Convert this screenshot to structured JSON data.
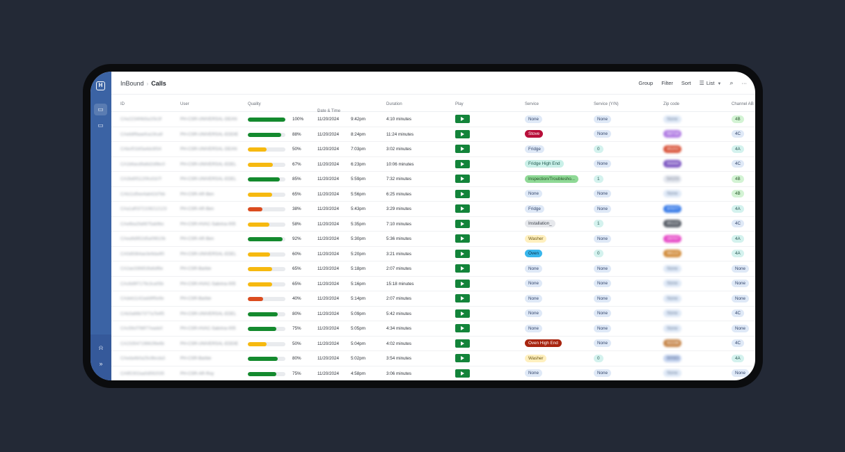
{
  "breadcrumb": {
    "root": "InBound",
    "current": "Calls"
  },
  "toolbar": {
    "group": "Group",
    "filter": "Filter",
    "sort": "Sort",
    "view": "List"
  },
  "columns": [
    "ID",
    "User",
    "Quality",
    "Date & Time",
    "Duration",
    "Play",
    "Service",
    "Service (Y/N)",
    "Zip code",
    "Channel AB"
  ],
  "date_sort_indicator": "↓",
  "colors": {
    "sidebar": "#3b63a4",
    "play": "#13843a",
    "good": "#148a2e",
    "mid": "#f6b910",
    "bad": "#db4c1f"
  },
  "rows": [
    {
      "id": "CAe2234f4b5a1f3c3f",
      "user": "PH-CSR-UNIVERSAL-DEAN",
      "quality": 100,
      "pct": "100%",
      "date": "11/20/2024",
      "time": "9:42pm",
      "duration": "4:10 minutes",
      "service": "None",
      "service_style": "none",
      "yn": "None",
      "yn_style": "none",
      "zip": "None",
      "zip_bg": "#dfe9f7",
      "zip_fg": "#6b7e99",
      "channel": "4B",
      "ch_bg": "#d3f3d4",
      "ch_fg": "#2c5e2e"
    },
    {
      "id": "CAeb8f9aaefca19ca9",
      "user": "PH-CSR-UNIVERSAL-EDDIE",
      "quality": 88,
      "pct": "88%",
      "date": "11/20/2024",
      "time": "8:24pm",
      "duration": "11:24 minutes",
      "service": "Stove",
      "service_style": "stove",
      "yn": "None",
      "yn_style": "none",
      "zip": "58718",
      "zip_bg": "#b07be3",
      "zip_fg": "#ffffff",
      "channel": "4C",
      "ch_bg": "#dfe9f7",
      "ch_fg": "#33456b"
    },
    {
      "id": "CAbcf01bf3a4dc6f34",
      "user": "PH-CSR-UNIVERSAL-DEAN",
      "quality": 50,
      "pct": "50%",
      "date": "11/20/2024",
      "time": "7:03pm",
      "duration": "3:02 minutes",
      "service": "Fridge",
      "service_style": "light",
      "yn": "0",
      "yn_style": "num",
      "zip": "85202",
      "zip_bg": "#d9533a",
      "zip_fg": "#ffffff",
      "channel": "4A",
      "ch_bg": "#d4f2ee",
      "ch_fg": "#2c5a55"
    },
    {
      "id": "CA1b6acd9a6d2d9bc0",
      "user": "PH-CSR-UNIVERSAL-EDEL",
      "quality": 67,
      "pct": "67%",
      "date": "11/20/2024",
      "time": "6:23pm",
      "duration": "10:06 minutes",
      "service": "Fridge High End",
      "service_style": "teal",
      "yn": "None",
      "yn_style": "none",
      "zip": "94444",
      "zip_bg": "#7d57c2",
      "zip_fg": "#ffffff",
      "channel": "4C",
      "ch_bg": "#dfe9f7",
      "ch_fg": "#33456b"
    },
    {
      "id": "CA2bd0f1120fcd1b7f",
      "user": "PH-CSR-UNIVERSAL-EDEL",
      "quality": 85,
      "pct": "85%",
      "date": "11/20/2024",
      "time": "5:59pm",
      "duration": "7:32 minutes",
      "service": "Inspection/Troublesho...",
      "service_style": "green",
      "yn": "1",
      "yn_style": "num",
      "zip": "54103",
      "zip_bg": "#e2e6ee",
      "zip_fg": "#7b8191",
      "channel": "4B",
      "ch_bg": "#d3f3d4",
      "ch_fg": "#2c5e2e"
    },
    {
      "id": "CAb11d5ee4ab42d7bb",
      "user": "PH-CSR-AR-Ben",
      "quality": 65,
      "pct": "65%",
      "date": "11/20/2024",
      "time": "5:56pm",
      "duration": "6:25 minutes",
      "service": "None",
      "service_style": "none",
      "yn": "None",
      "yn_style": "none",
      "zip": "None",
      "zip_bg": "#dfe9f7",
      "zip_fg": "#6b7e99",
      "channel": "4B",
      "ch_bg": "#d3f3d4",
      "ch_fg": "#2c5e2e"
    },
    {
      "id": "CAa1af0372108212123",
      "user": "PH-CSR-AR-Ben",
      "quality": 38,
      "pct": "38%",
      "date": "11/20/2024",
      "time": "5:43pm",
      "duration": "3:29 minutes",
      "service": "Fridge",
      "service_style": "light",
      "yn": "None",
      "yn_style": "none",
      "zip": "97077",
      "zip_bg": "#3b7de8",
      "zip_fg": "#ffffff",
      "channel": "4A",
      "ch_bg": "#d4f2ee",
      "ch_fg": "#2c5a55"
    },
    {
      "id": "CAe6ba2fa6675ab9bc",
      "user": "PH-CSR-HVAC-Sabrina-005",
      "quality": 58,
      "pct": "58%",
      "date": "11/20/2024",
      "time": "5:35pm",
      "duration": "7:10 minutes",
      "service": "Installation_",
      "service_style": "grey",
      "yn": "1",
      "yn_style": "num",
      "zip": "85122",
      "zip_bg": "#565c66",
      "zip_fg": "#ffffff",
      "channel": "4C",
      "ch_bg": "#dfe9f7",
      "ch_fg": "#33456b"
    },
    {
      "id": "CAea9d952d5a09610b",
      "user": "PH-CSR-AR-Ben",
      "quality": 92,
      "pct": "92%",
      "date": "11/20/2024",
      "time": "5:30pm",
      "duration": "5:36 minutes",
      "service": "Washer",
      "service_style": "yellow",
      "yn": "None",
      "yn_style": "none",
      "zip": "29707",
      "zip_bg": "#e64bc7",
      "zip_fg": "#ffffff",
      "channel": "4A",
      "ch_bg": "#d4f2ee",
      "ch_fg": "#2c5a55"
    },
    {
      "id": "CA0d9364ae3e9da4f0",
      "user": "PH-CSR-UNIVERSAL-EDEL",
      "quality": 60,
      "pct": "60%",
      "date": "11/20/2024",
      "time": "5:20pm",
      "duration": "3:21 minutes",
      "service": "Oven",
      "service_style": "blue",
      "yn": "0",
      "yn_style": "num",
      "zip": "98122",
      "zip_bg": "#d18b3a",
      "zip_fg": "#ffffff",
      "channel": "4A",
      "ch_bg": "#d4f2ee",
      "ch_fg": "#2c5a55"
    },
    {
      "id": "CA2ae336653fa6df6e",
      "user": "PH-CSR-Barbie",
      "quality": 65,
      "pct": "65%",
      "date": "11/20/2024",
      "time": "5:18pm",
      "duration": "2:07 minutes",
      "service": "None",
      "service_style": "none",
      "yn": "None",
      "yn_style": "none",
      "zip": "None",
      "zip_bg": "#dfe9f7",
      "zip_fg": "#6b7e99",
      "channel": "None",
      "ch_bg": "#dfe9f7",
      "ch_fg": "#33456b"
    },
    {
      "id": "CAc6d9f7179c3ca05b",
      "user": "PH-CSR-HVAC-Sabrina-005",
      "quality": 65,
      "pct": "65%",
      "date": "11/20/2024",
      "time": "5:16pm",
      "duration": "15:18 minutes",
      "service": "None",
      "service_style": "none",
      "yn": "None",
      "yn_style": "none",
      "zip": "None",
      "zip_bg": "#dfe9f7",
      "zip_fg": "#6b7e99",
      "channel": "None",
      "ch_bg": "#dfe9f7",
      "ch_fg": "#33456b"
    },
    {
      "id": "CAdeb1142add9f5e9e",
      "user": "PH-CSR-Barbie",
      "quality": 40,
      "pct": "40%",
      "date": "11/20/2024",
      "time": "5:14pm",
      "duration": "2:07 minutes",
      "service": "None",
      "service_style": "none",
      "yn": "None",
      "yn_style": "none",
      "zip": "None",
      "zip_bg": "#dfe9f7",
      "zip_fg": "#6b7e99",
      "channel": "None",
      "ch_bg": "#dfe9f7",
      "ch_fg": "#33456b"
    },
    {
      "id": "CAb3a66b7377a7b4f5",
      "user": "PH-CSR-UNIVERSAL-EDEL",
      "quality": 80,
      "pct": "80%",
      "date": "11/20/2024",
      "time": "5:09pm",
      "duration": "5:42 minutes",
      "service": "None",
      "service_style": "none",
      "yn": "None",
      "yn_style": "none",
      "zip": "None",
      "zip_bg": "#dfe9f7",
      "zip_fg": "#6b7e99",
      "channel": "4C",
      "ch_bg": "#dfe9f7",
      "ch_fg": "#33456b"
    },
    {
      "id": "CAc59cf798f77eade0",
      "user": "PH-CSR-HVAC-Sabrina-005",
      "quality": 75,
      "pct": "75%",
      "date": "11/20/2024",
      "time": "5:05pm",
      "duration": "4:34 minutes",
      "service": "None",
      "service_style": "none",
      "yn": "None",
      "yn_style": "none",
      "zip": "None",
      "zip_bg": "#dfe9f7",
      "zip_fg": "#6b7e99",
      "channel": "None",
      "ch_bg": "#dfe9f7",
      "ch_fg": "#33456b"
    },
    {
      "id": "CA23354719662f8e6b",
      "user": "PH-CSR-UNIVERSAL-EDDIE",
      "quality": 50,
      "pct": "50%",
      "date": "11/20/2024",
      "time": "5:04pm",
      "duration": "4:02 minutes",
      "service": "Oven High End",
      "service_style": "red",
      "yn": "None",
      "yn_style": "none",
      "zip": "92236",
      "zip_bg": "#c6864a",
      "zip_fg": "#ffffff",
      "channel": "4C",
      "ch_bg": "#dfe9f7",
      "ch_fg": "#33456b"
    },
    {
      "id": "CAeda4b0a25c9bcda3",
      "user": "PH-CSR-Barbie",
      "quality": 80,
      "pct": "80%",
      "date": "11/20/2024",
      "time": "5:02pm",
      "duration": "3:54 minutes",
      "service": "Washer",
      "service_style": "yellow",
      "yn": "0",
      "yn_style": "num",
      "zip": "90083",
      "zip_bg": "#c5d4f0",
      "zip_fg": "#4a5f88",
      "channel": "4A",
      "ch_bg": "#d4f2ee",
      "ch_fg": "#2c5a55"
    },
    {
      "id": "CA9f2302aa0d592035",
      "user": "PH-CSR-AR-Roy",
      "quality": 75,
      "pct": "75%",
      "date": "11/20/2024",
      "time": "4:58pm",
      "duration": "3:06 minutes",
      "service": "None",
      "service_style": "none",
      "yn": "None",
      "yn_style": "none",
      "zip": "None",
      "zip_bg": "#dfe9f7",
      "zip_fg": "#6b7e99",
      "channel": "None",
      "ch_bg": "#dfe9f7",
      "ch_fg": "#33456b"
    }
  ]
}
